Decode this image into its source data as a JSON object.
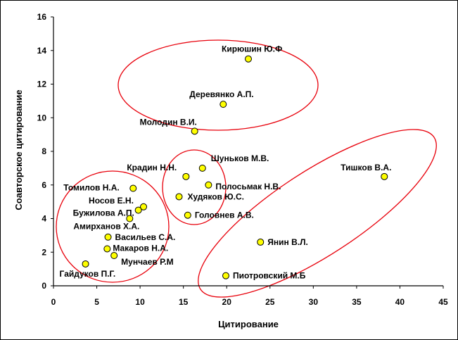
{
  "chart_data": {
    "type": "scatter",
    "title": "",
    "xlabel": "Цитирование",
    "ylabel": "Соавторское цитирование",
    "xlim": [
      0,
      45
    ],
    "ylim": [
      0,
      16
    ],
    "xticks": [
      "0",
      "5",
      "10",
      "15",
      "20",
      "25",
      "30",
      "35",
      "40",
      "45"
    ],
    "yticks": [
      "0",
      "2",
      "4",
      "6",
      "8",
      "10",
      "12",
      "14",
      "16"
    ],
    "grid": false,
    "marker_color": "#ffff00",
    "cluster_color": "#e8000b",
    "points": [
      {
        "label": "Кирюшин Ю.Ф",
        "x": 22.5,
        "y": 13.5
      },
      {
        "label": "Деревянко А.П.",
        "x": 19.6,
        "y": 10.8
      },
      {
        "label": "Молодин В.И.",
        "x": 16.3,
        "y": 9.2
      },
      {
        "label": "Шуньков М.В.",
        "x": 17.2,
        "y": 7.0
      },
      {
        "label": "Крадин Н.Н.",
        "x": 15.3,
        "y": 6.5
      },
      {
        "label": "Полосьмак Н.В.",
        "x": 17.9,
        "y": 6.0
      },
      {
        "label": "Худяков Ю.С.",
        "x": 14.5,
        "y": 5.3
      },
      {
        "label": "Головнев А.В.",
        "x": 15.5,
        "y": 4.2
      },
      {
        "label": "Тишков В.А.",
        "x": 38.2,
        "y": 6.5
      },
      {
        "label": "Томилов Н.А.",
        "x": 9.2,
        "y": 5.8
      },
      {
        "label": "Носов Е.Н.",
        "x": 10.4,
        "y": 4.7
      },
      {
        "label": "Бужилова А.П.",
        "x": 9.8,
        "y": 4.5
      },
      {
        "label": "Амирханов Х.А.",
        "x": 8.8,
        "y": 4.0
      },
      {
        "label": "Васильев С.А.",
        "x": 6.3,
        "y": 2.9
      },
      {
        "label": "Макаров Н.А.",
        "x": 6.2,
        "y": 2.2
      },
      {
        "label": "Мунчаев Р.М",
        "x": 7.0,
        "y": 1.8
      },
      {
        "label": "Гайдуков П.Г.",
        "x": 3.7,
        "y": 1.3
      },
      {
        "label": "Янин В.Л.",
        "x": 23.9,
        "y": 2.6
      },
      {
        "label": "Пиотровский М.Б",
        "x": 19.9,
        "y": 0.6
      }
    ]
  }
}
